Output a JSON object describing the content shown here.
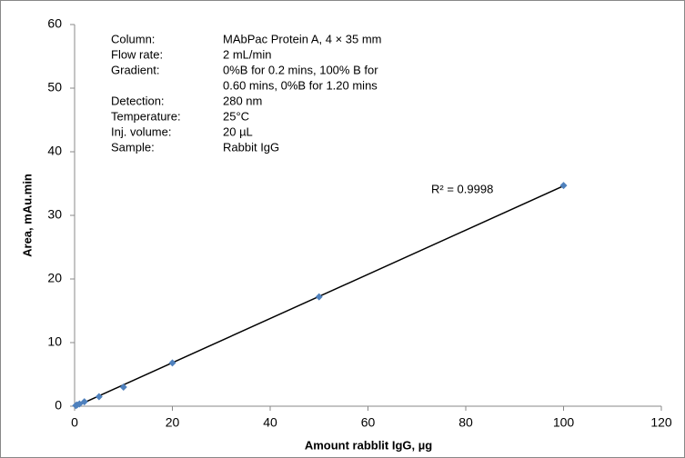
{
  "chart_data": {
    "type": "scatter",
    "x_label": "Amount rabblit IgG, µg",
    "y_label": "Area, mAu.min",
    "x": [
      0.25,
      0.5,
      1,
      2,
      5,
      10,
      20,
      50,
      100
    ],
    "values": [
      0.1,
      0.2,
      0.35,
      0.7,
      1.5,
      3.0,
      6.8,
      17.2,
      34.7
    ],
    "color": "#4f81bd",
    "trendline": true,
    "annotation": "R² = 0.9998",
    "conditions": [
      {
        "label": "Column:",
        "lines": [
          "MAbPac Protein A, 4 × 35 mm"
        ]
      },
      {
        "label": "Flow rate:",
        "lines": [
          "2 mL/min"
        ]
      },
      {
        "label": "Gradient:",
        "lines": [
          " 0%B for 0.2 mins, 100% B for",
          "0.60 mins, 0%B for 1.20 mins"
        ]
      },
      {
        "label": "Detection:",
        "lines": [
          "280 nm"
        ]
      },
      {
        "label": "Temperature:",
        "lines": [
          "25°C"
        ]
      },
      {
        "label": "Inj. volume:",
        "lines": [
          "20 µL"
        ]
      },
      {
        "label": "Sample:",
        "lines": [
          "Rabbit IgG"
        ]
      }
    ],
    "xlim": [
      0,
      120
    ],
    "xticks": [
      0,
      20,
      40,
      60,
      80,
      100,
      120
    ],
    "ylim": [
      0,
      60
    ],
    "yticks": [
      0,
      10,
      20,
      30,
      40,
      50,
      60
    ]
  }
}
